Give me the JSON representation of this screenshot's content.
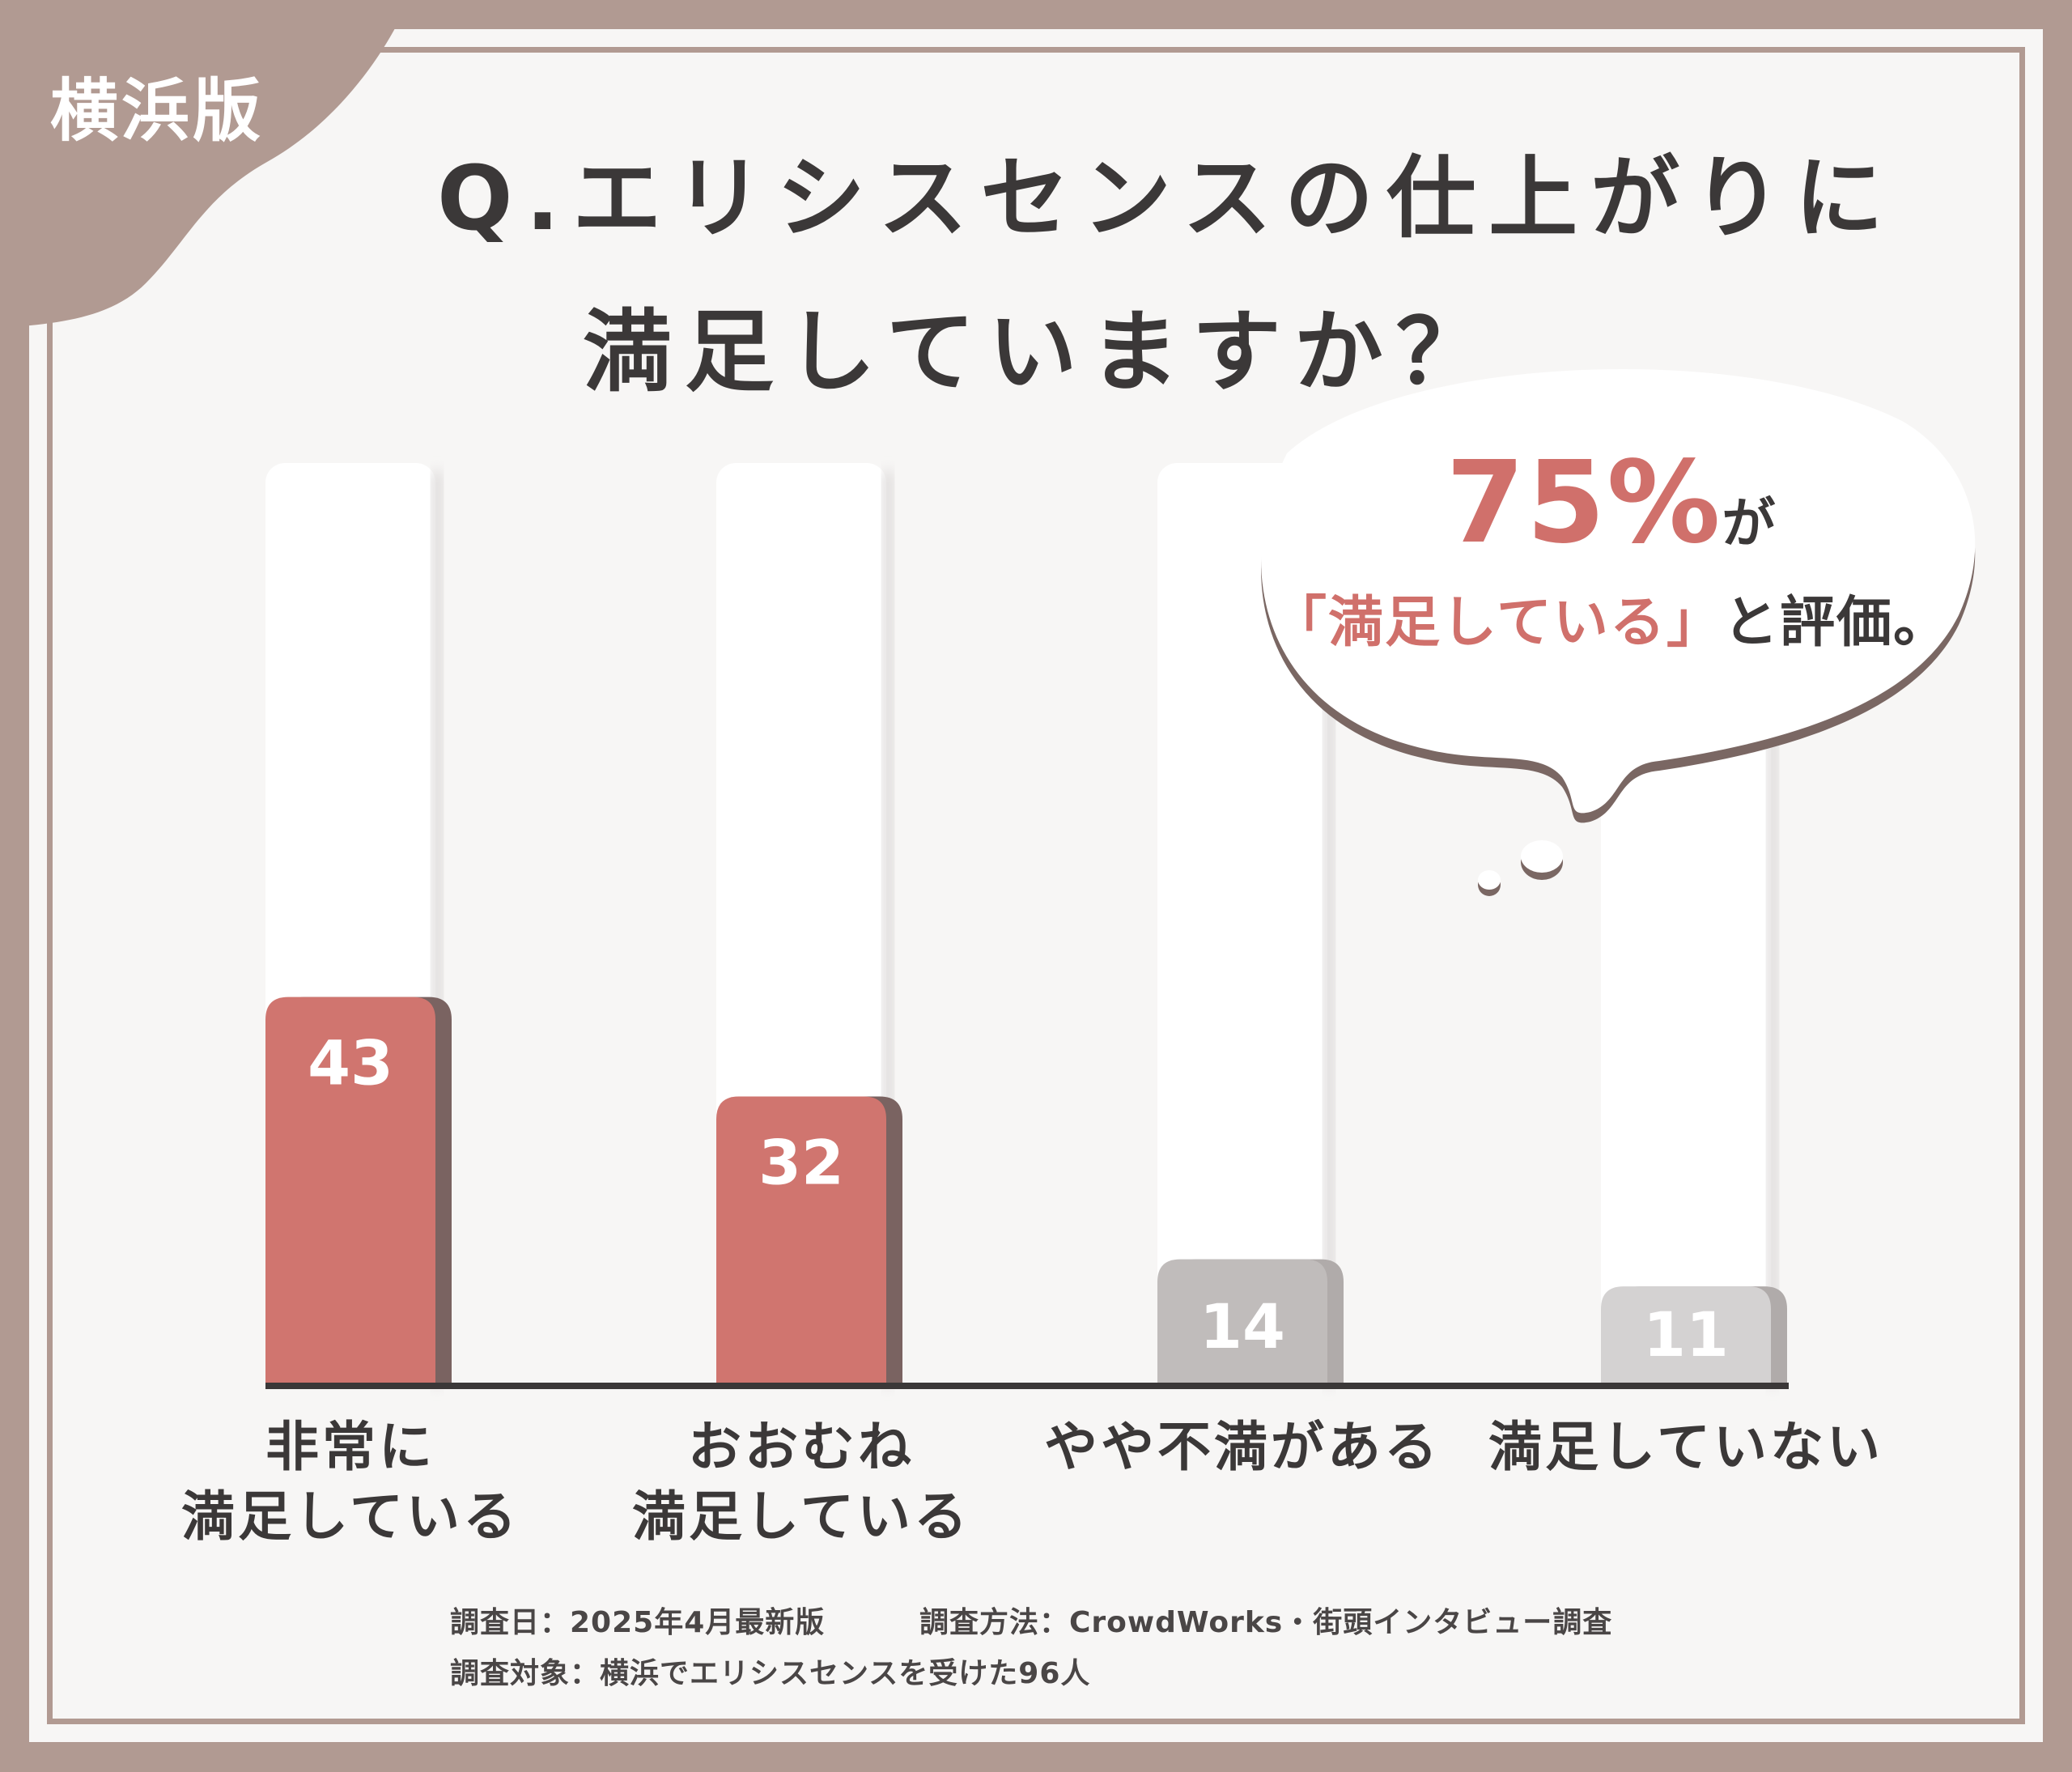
{
  "edition": "横浜版",
  "title": {
    "line1": "Q.エリシスセンスの仕上がりに",
    "line2": "満足していますか？"
  },
  "callout": {
    "percent": "75%",
    "suffix": "が",
    "quote": "「満足している」",
    "tail": "と評価。"
  },
  "chart_data": {
    "type": "bar",
    "categories": [
      "非常に\n満足している",
      "おおむね\n満足している",
      "やや不満がある",
      "満足していない"
    ],
    "values": [
      43,
      32,
      14,
      11
    ],
    "ylim": [
      0,
      100
    ],
    "grid": false,
    "bar_colors": [
      "#d0756f",
      "#d0756f",
      "#c0bcbb",
      "#d4d2d2"
    ]
  },
  "footer": {
    "date": "調査日：2025年4月最新版",
    "method": "調査方法：CrowdWorks・街頭インタビュー調査",
    "target": "調査対象：横浜でエリシスセンスを受けた96人"
  }
}
